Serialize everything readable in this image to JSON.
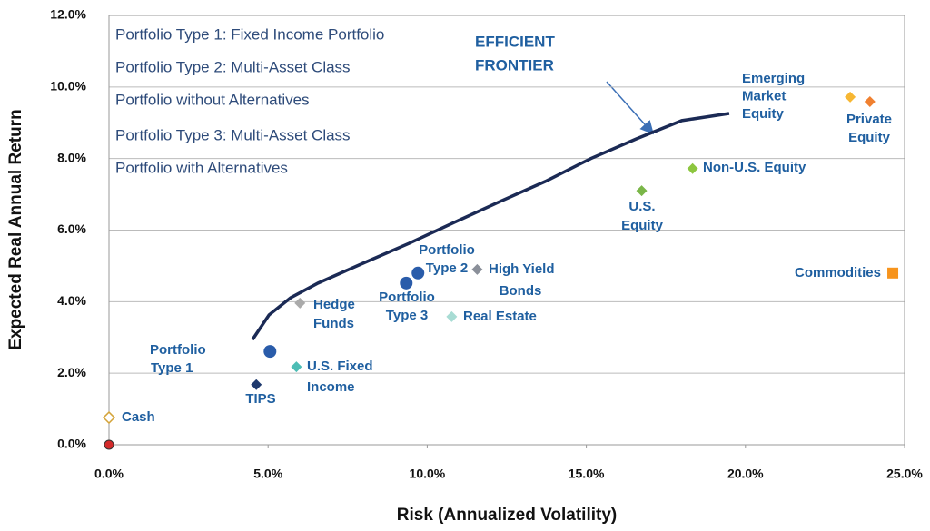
{
  "chart_data": {
    "type": "scatter",
    "xlabel": "Risk (Annualized Volatility)",
    "ylabel": "Expected Real Annual Return",
    "xlim": [
      0,
      25
    ],
    "ylim": [
      0,
      12
    ],
    "xticks": [
      {
        "value": 0,
        "label": "0.0%"
      },
      {
        "value": 5,
        "label": "5.0%"
      },
      {
        "value": 10,
        "label": "10.0%"
      },
      {
        "value": 15,
        "label": "15.0%"
      },
      {
        "value": 20,
        "label": "20.0%"
      },
      {
        "value": 25,
        "label": "25.0%"
      }
    ],
    "yticks": [
      {
        "value": 0,
        "label": "0.0%"
      },
      {
        "value": 2,
        "label": "2.0%"
      },
      {
        "value": 4,
        "label": "4.0%"
      },
      {
        "value": 6,
        "label": "6.0%"
      },
      {
        "value": 8,
        "label": "8.0%"
      },
      {
        "value": 10,
        "label": "10.0%"
      },
      {
        "value": 12,
        "label": "12.0%"
      }
    ],
    "grid": true,
    "annotations": [
      "Portfolio Type 1: Fixed Income Portfolio",
      "Portfolio Type 2: Multi-Asset Class",
      "Portfolio without Alternatives",
      "Portfolio Type 3: Multi-Asset Class",
      "Portfolio with Alternatives"
    ],
    "frontier": {
      "label": [
        "EFFICIENT",
        "FRONTIER"
      ],
      "color": "#1b2a55",
      "x": [
        4.51,
        5.03,
        5.71,
        6.57,
        8.0,
        9.43,
        10.86,
        12.29,
        13.71,
        15.14,
        16.57,
        18.0,
        19.49
      ],
      "values": [
        2.94,
        3.63,
        4.11,
        4.52,
        5.08,
        5.63,
        6.22,
        6.8,
        7.36,
        8.0,
        8.55,
        9.06,
        9.26
      ]
    },
    "series": [
      {
        "label": null,
        "marker": "circle",
        "color": "#d42a2a",
        "x": [
          0
        ],
        "values": [
          0
        ]
      },
      {
        "label": [
          "Cash"
        ],
        "marker": "hollow-diamond",
        "color": "#d4a43a",
        "x": [
          0
        ],
        "values": [
          0.76
        ]
      },
      {
        "label": [
          "TIPS"
        ],
        "marker": "diamond",
        "color": "#1f3a6e",
        "x": [
          4.63
        ],
        "values": [
          1.68
        ]
      },
      {
        "label": [
          "Portfolio",
          "Type 1"
        ],
        "marker": "circle",
        "color": "#2a5caa",
        "x": [
          5.06
        ],
        "values": [
          2.61
        ]
      },
      {
        "label": [
          "U.S. Fixed",
          "Income"
        ],
        "marker": "diamond",
        "color": "#4dbdb5",
        "x": [
          5.89
        ],
        "values": [
          2.18
        ]
      },
      {
        "label": [
          "Hedge",
          "Funds"
        ],
        "marker": "diamond",
        "color": "#aaaaaa",
        "x": [
          6.0
        ],
        "values": [
          3.96
        ]
      },
      {
        "label": [
          "Portfolio",
          "Type 3"
        ],
        "marker": "circle",
        "color": "#2a5caa",
        "x": [
          9.34
        ],
        "values": [
          4.52
        ]
      },
      {
        "label": [
          "Portfolio",
          "Type 2"
        ],
        "marker": "circle",
        "color": "#2a5caa",
        "x": [
          9.71
        ],
        "values": [
          4.8
        ]
      },
      {
        "label": [
          "High Yield",
          "Bonds"
        ],
        "marker": "diamond",
        "color": "#8a8f99",
        "x": [
          11.57
        ],
        "values": [
          4.9
        ]
      },
      {
        "label": [
          "Real Estate"
        ],
        "marker": "diamond",
        "color": "#a8dcd4",
        "x": [
          10.77
        ],
        "values": [
          3.58
        ]
      },
      {
        "label": [
          "U.S.",
          "Equity"
        ],
        "marker": "diamond",
        "color": "#7ab648",
        "x": [
          16.74
        ],
        "values": [
          7.1
        ]
      },
      {
        "label": [
          "Non-U.S. Equity"
        ],
        "marker": "diamond",
        "color": "#8dc63f",
        "x": [
          18.34
        ],
        "values": [
          7.72
        ]
      },
      {
        "label": [
          "Emerging",
          "Market",
          "Equity"
        ],
        "marker": "diamond",
        "color": "#f7b733",
        "x": [
          23.29
        ],
        "values": [
          9.72
        ]
      },
      {
        "label": [
          "Private",
          "Equity"
        ],
        "marker": "diamond",
        "color": "#f08030",
        "x": [
          23.91
        ],
        "values": [
          9.59
        ]
      },
      {
        "label": [
          "Commodities"
        ],
        "marker": "square",
        "color": "#f7941d",
        "x": [
          24.63
        ],
        "values": [
          4.8
        ]
      }
    ]
  }
}
